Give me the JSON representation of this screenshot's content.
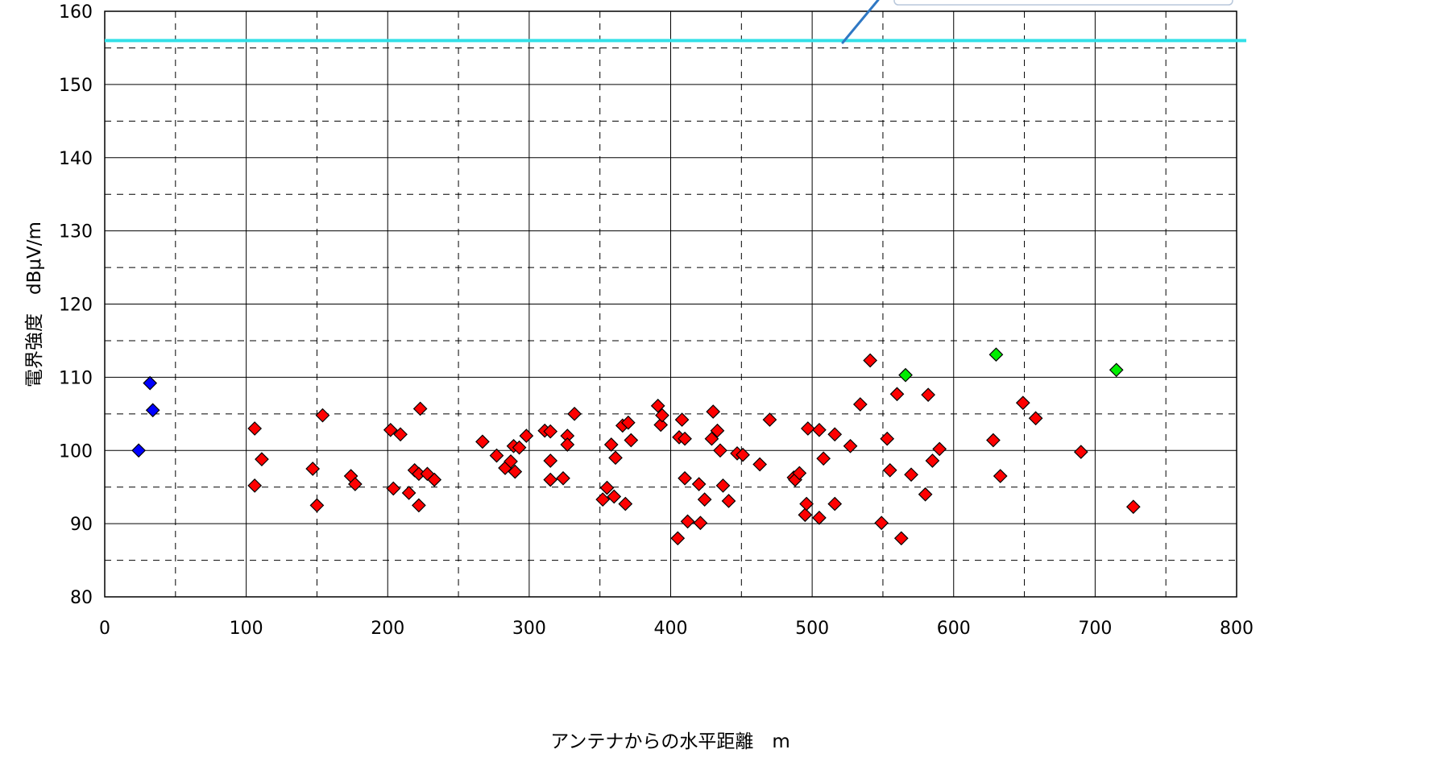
{
  "chart_data": {
    "type": "scatter",
    "title": "",
    "xlabel": "アンテナからの水平距離　m",
    "ylabel": "電界強度　dBμV/m",
    "xlim": [
      0,
      800
    ],
    "ylim": [
      80,
      160
    ],
    "x_ticks": [
      "0",
      "100",
      "200",
      "300",
      "400",
      "500",
      "600",
      "700",
      "800"
    ],
    "y_ticks": [
      "80",
      "90",
      "100",
      "110",
      "120",
      "130",
      "140",
      "150",
      "160"
    ],
    "x_tick_values": [
      0,
      100,
      200,
      300,
      400,
      500,
      600,
      700,
      800
    ],
    "y_tick_values": [
      80,
      90,
      100,
      110,
      120,
      130,
      140,
      150,
      160
    ],
    "grid": "major solid, minor dashed",
    "reference_line": {
      "y": 156,
      "color": "#33e0e8"
    },
    "series": [
      {
        "color": "#0000ff",
        "marker": "diamond",
        "points": [
          [
            24,
            100
          ],
          [
            32,
            109.2
          ],
          [
            34,
            105.5
          ]
        ]
      },
      {
        "color": "#ff0000",
        "marker": "diamond",
        "points": [
          [
            106,
            103
          ],
          [
            106,
            95.2
          ],
          [
            111,
            98.8
          ],
          [
            147,
            97.5
          ],
          [
            150,
            92.5
          ],
          [
            154,
            104.8
          ],
          [
            174,
            96.5
          ],
          [
            177,
            95.4
          ],
          [
            202,
            102.8
          ],
          [
            204,
            94.8
          ],
          [
            209,
            102.2
          ],
          [
            215,
            94.2
          ],
          [
            219,
            97.3
          ],
          [
            222,
            92.5
          ],
          [
            223,
            105.7
          ],
          [
            222,
            96.8
          ],
          [
            228,
            96.8
          ],
          [
            233,
            96
          ],
          [
            267,
            101.2
          ],
          [
            277,
            99.3
          ],
          [
            283,
            97.6
          ],
          [
            287,
            98.5
          ],
          [
            289,
            100.6
          ],
          [
            290,
            97.1
          ],
          [
            293,
            100.4
          ],
          [
            298,
            102
          ],
          [
            311,
            102.7
          ],
          [
            315,
            102.6
          ],
          [
            315,
            98.6
          ],
          [
            315,
            96
          ],
          [
            324,
            96.2
          ],
          [
            327,
            102
          ],
          [
            327,
            100.8
          ],
          [
            332,
            105
          ],
          [
            352,
            93.3
          ],
          [
            355,
            94.9
          ],
          [
            358,
            100.8
          ],
          [
            360,
            93.7
          ],
          [
            361,
            99
          ],
          [
            366,
            103.4
          ],
          [
            368,
            92.7
          ],
          [
            370,
            103.8
          ],
          [
            372,
            101.4
          ],
          [
            391,
            106.1
          ],
          [
            393,
            103.5
          ],
          [
            394,
            104.8
          ],
          [
            405,
            88
          ],
          [
            406,
            101.8
          ],
          [
            408,
            104.2
          ],
          [
            410,
            101.6
          ],
          [
            410,
            96.2
          ],
          [
            412,
            90.3
          ],
          [
            420,
            95.4
          ],
          [
            421,
            90.1
          ],
          [
            424,
            93.3
          ],
          [
            429,
            101.6
          ],
          [
            430,
            105.3
          ],
          [
            433,
            102.7
          ],
          [
            435,
            100
          ],
          [
            437,
            95.2
          ],
          [
            441,
            93.1
          ],
          [
            447,
            99.6
          ],
          [
            451,
            99.4
          ],
          [
            463,
            98.1
          ],
          [
            470,
            104.2
          ],
          [
            487,
            96.3
          ],
          [
            488,
            96
          ],
          [
            491,
            96.9
          ],
          [
            495,
            91.2
          ],
          [
            496,
            92.7
          ],
          [
            497,
            103
          ],
          [
            505,
            102.8
          ],
          [
            505,
            90.8
          ],
          [
            508,
            98.9
          ],
          [
            516,
            102.2
          ],
          [
            516,
            92.7
          ],
          [
            527,
            100.6
          ],
          [
            534,
            106.3
          ],
          [
            541,
            112.3
          ],
          [
            549,
            90.1
          ],
          [
            553,
            101.6
          ],
          [
            555,
            97.3
          ],
          [
            560,
            107.7
          ],
          [
            563,
            88
          ],
          [
            570,
            96.7
          ],
          [
            580,
            94
          ],
          [
            582,
            107.6
          ],
          [
            585,
            98.6
          ],
          [
            590,
            100.2
          ],
          [
            628,
            101.4
          ],
          [
            633,
            96.5
          ],
          [
            649,
            106.5
          ],
          [
            658,
            104.4
          ],
          [
            690,
            99.8
          ],
          [
            727,
            92.3
          ]
        ]
      },
      {
        "color": "#00ee00",
        "marker": "diamond",
        "points": [
          [
            566,
            110.3
          ],
          [
            630,
            113.1
          ],
          [
            715,
            111
          ]
        ]
      }
    ]
  }
}
